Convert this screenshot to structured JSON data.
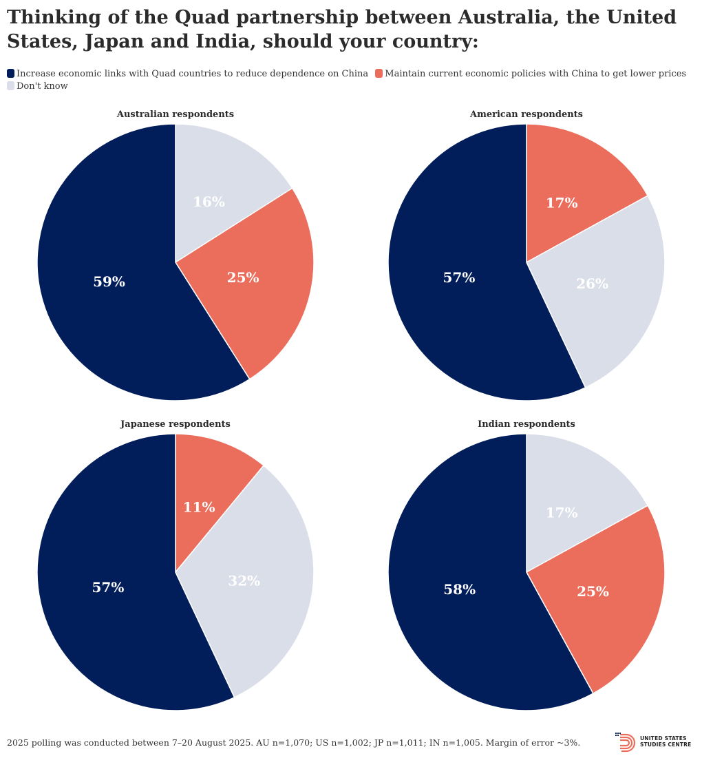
{
  "title": "Thinking of the Quad partnership between Australia, the United States, Japan and India, should your country:",
  "legend": [
    {
      "label": "Increase economic links with Quad countries to reduce dependence on China",
      "color": "#021e5a"
    },
    {
      "label": "Maintain current economic policies with China to get lower prices",
      "color": "#eb6e5d"
    },
    {
      "label": "Don't know",
      "color": "#dadee8"
    }
  ],
  "footer": "2025 polling was conducted between 7–20 August 2025. AU n=1,070; US n=1,002; JP n=1,011; IN n=1,005. Margin of error ~3%.",
  "logo": {
    "line1": "UNITED STATES",
    "line2": "STUDIES CENTRE"
  },
  "colors": {
    "increase": "#021e5a",
    "maintain": "#eb6e5d",
    "dont_know": "#dadee8"
  },
  "chart_data": [
    {
      "type": "pie",
      "title": "Australian respondents",
      "slices": [
        {
          "label": "Don't know",
          "key": "dont_know",
          "value": 16,
          "display": "16%"
        },
        {
          "label": "Maintain current economic policies with China to get lower prices",
          "key": "maintain",
          "value": 25,
          "display": "25%"
        },
        {
          "label": "Increase economic links with Quad countries to reduce dependence on China",
          "key": "increase",
          "value": 59,
          "display": "59%"
        }
      ]
    },
    {
      "type": "pie",
      "title": "American respondents",
      "slices": [
        {
          "label": "Maintain current economic policies with China to get lower prices",
          "key": "maintain",
          "value": 17,
          "display": "17%"
        },
        {
          "label": "Don't know",
          "key": "dont_know",
          "value": 26,
          "display": "26%"
        },
        {
          "label": "Increase economic links with Quad countries to reduce dependence on China",
          "key": "increase",
          "value": 57,
          "display": "57%"
        }
      ]
    },
    {
      "type": "pie",
      "title": "Japanese respondents",
      "slices": [
        {
          "label": "Maintain current economic policies with China to get lower prices",
          "key": "maintain",
          "value": 11,
          "display": "11%"
        },
        {
          "label": "Don't know",
          "key": "dont_know",
          "value": 32,
          "display": "32%"
        },
        {
          "label": "Increase economic links with Quad countries to reduce dependence on China",
          "key": "increase",
          "value": 57,
          "display": "57%"
        }
      ]
    },
    {
      "type": "pie",
      "title": "Indian respondents",
      "slices": [
        {
          "label": "Don't know",
          "key": "dont_know",
          "value": 17,
          "display": "17%"
        },
        {
          "label": "Maintain current economic policies with China to get lower prices",
          "key": "maintain",
          "value": 25,
          "display": "25%"
        },
        {
          "label": "Increase economic links with Quad countries to reduce dependence on China",
          "key": "increase",
          "value": 58,
          "display": "58%"
        }
      ]
    }
  ]
}
